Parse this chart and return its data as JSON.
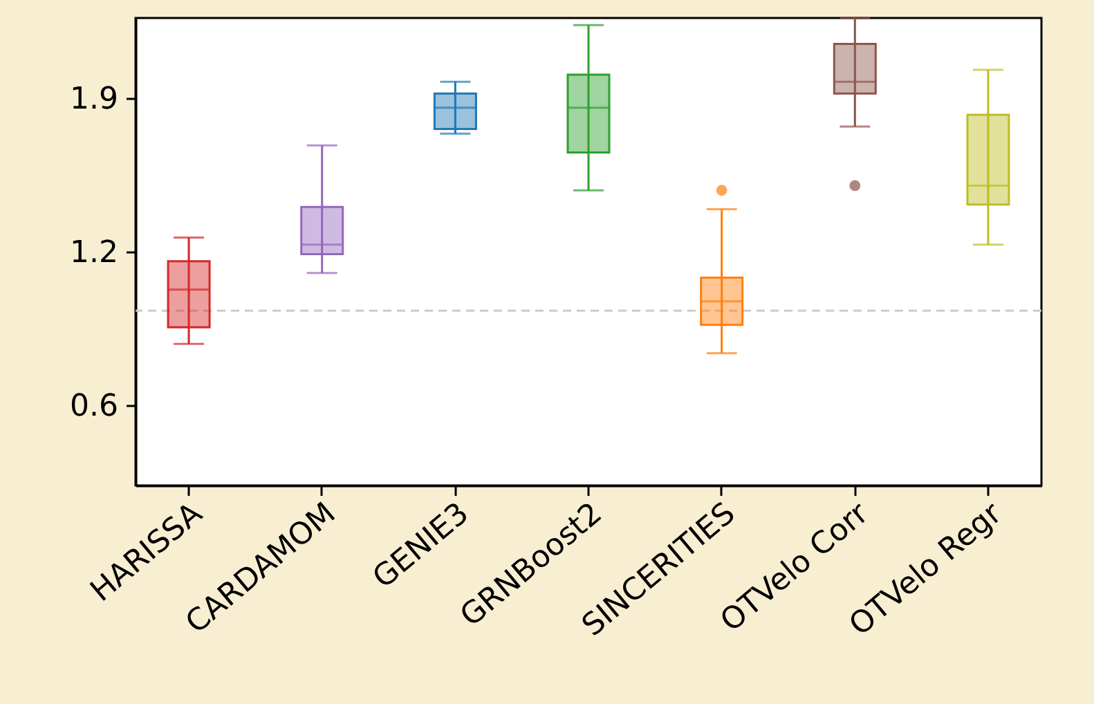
{
  "chart_data": {
    "type": "box",
    "categories": [
      "HARISSA",
      "CARDAMOM",
      "GENIE3",
      "GRNBoost2",
      "SINCERITIES",
      "OTVelo Corr",
      "OTVelo Regr"
    ],
    "colors": [
      "#d62728",
      "#9467bd",
      "#1f77b4",
      "#2ca02c",
      "#ff7f0e",
      "#8c564b",
      "#bcbd22"
    ],
    "boxes": [
      {
        "low": 0.86,
        "q1": 0.93,
        "median": 1.09,
        "q3": 1.21,
        "high": 1.31
      },
      {
        "low": 1.16,
        "q1": 1.24,
        "median": 1.28,
        "q3": 1.44,
        "high": 1.7
      },
      {
        "low": 1.75,
        "q1": 1.77,
        "median": 1.86,
        "q3": 1.92,
        "high": 1.97
      },
      {
        "low": 1.51,
        "q1": 1.67,
        "median": 1.86,
        "q3": 2.0,
        "high": 2.21
      },
      {
        "low": 0.82,
        "q1": 0.94,
        "median": 1.04,
        "q3": 1.14,
        "high": 1.43,
        "outliers": [
          1.51
        ]
      },
      {
        "low": 1.78,
        "q1": 1.92,
        "median": 1.97,
        "q3": 2.13,
        "high": 2.24,
        "outliers": [
          1.53
        ]
      },
      {
        "low": 1.28,
        "q1": 1.45,
        "median": 1.53,
        "q3": 1.83,
        "high": 2.02
      }
    ],
    "ylim": [
      0.26,
      2.24
    ],
    "yticks": [
      0.6,
      {
        "value": 1.25,
        "label": "1.2"
      },
      1.9
    ],
    "ref_lines": [
      {
        "axis": "y",
        "value": 1.0,
        "color": "#cccccc",
        "line_style": "dashed"
      }
    ],
    "grid": false
  }
}
